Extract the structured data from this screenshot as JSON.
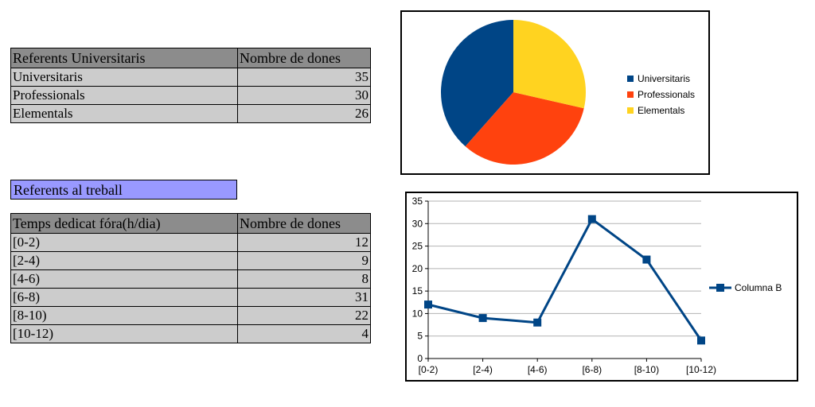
{
  "table1": {
    "headers": [
      "Referents Universitaris",
      "Nombre de dones"
    ],
    "rows": [
      {
        "label": "Universitaris",
        "value": "35"
      },
      {
        "label": "Professionals",
        "value": "30"
      },
      {
        "label": "Elementals",
        "value": "26"
      }
    ]
  },
  "section_label": "Referents al treball",
  "table2": {
    "headers": [
      "Temps dedicat fóra(h/dia)",
      "Nombre de dones"
    ],
    "rows": [
      {
        "label": "[0-2)",
        "value": "12"
      },
      {
        "label": "[2-4)",
        "value": "9"
      },
      {
        "label": "[4-6)",
        "value": "8"
      },
      {
        "label": "[6-8)",
        "value": "31"
      },
      {
        "label": "[8-10)",
        "value": "22"
      },
      {
        "label": "[10-12)",
        "value": "4"
      }
    ]
  },
  "chart_data": [
    {
      "type": "pie",
      "categories": [
        "Universitaris",
        "Professionals",
        "Elementals"
      ],
      "values": [
        35,
        30,
        26
      ],
      "colors": [
        "#004586",
        "#ff420e",
        "#ffd320"
      ],
      "legend": "right"
    },
    {
      "type": "line",
      "categories": [
        "[0-2)",
        "[2-4)",
        "[4-6)",
        "[6-8)",
        "[8-10)",
        "[10-12)"
      ],
      "series": [
        {
          "name": "Columna B",
          "values": [
            12,
            9,
            8,
            31,
            22,
            4
          ]
        }
      ],
      "ylim": [
        0,
        35
      ],
      "yticks": [
        0,
        5,
        10,
        15,
        20,
        25,
        30,
        35
      ],
      "grid": true,
      "legend": "right",
      "color": "#004586"
    }
  ]
}
